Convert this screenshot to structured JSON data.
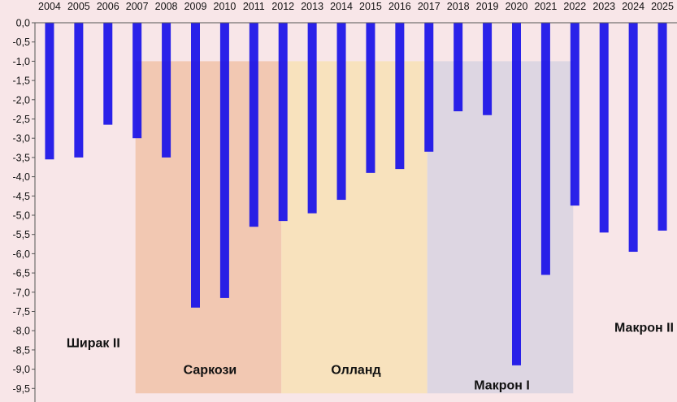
{
  "chart_data": {
    "type": "bar",
    "title": "",
    "xlabel": "",
    "ylabel": "",
    "categories": [
      "2004",
      "2005",
      "2006",
      "2007",
      "2008",
      "2009",
      "2010",
      "2011",
      "2012",
      "2013",
      "2014",
      "2015",
      "2016",
      "2017",
      "2018",
      "2019",
      "2020",
      "2021",
      "2022",
      "2023",
      "2024",
      "2025"
    ],
    "values": [
      -3.55,
      -3.5,
      -2.65,
      -3.0,
      -3.5,
      -7.4,
      -7.15,
      -5.3,
      -5.15,
      -4.95,
      -4.6,
      -3.9,
      -3.8,
      -3.35,
      -2.3,
      -2.4,
      -8.9,
      -6.55,
      -4.75,
      -5.45,
      -5.95,
      -5.4
    ],
    "bar_color": "#1a12e8",
    "ylim": [
      -9.5,
      0
    ],
    "yticks": [
      "0,0",
      "-0,5",
      "-1,0",
      "-1,5",
      "-2,0",
      "-2,5",
      "-3,0",
      "-3,5",
      "-4,0",
      "-4,5",
      "-5,0",
      "-5,5",
      "-6,0",
      "-6,5",
      "-7,0",
      "-7,5",
      "-8,0",
      "-8,5",
      "-9,0",
      "-9,5"
    ],
    "ytick_values": [
      0,
      -0.5,
      -1,
      -1.5,
      -2,
      -2.5,
      -3,
      -3.5,
      -4,
      -4.5,
      -5,
      -5.5,
      -6,
      -6.5,
      -7,
      -7.5,
      -8,
      -8.5,
      -9,
      -9.5
    ],
    "x_axis_position": "top",
    "grid": false,
    "legend": "none",
    "periods": [
      {
        "label": "Ширак II",
        "from": "2004",
        "to": "2007",
        "color": "#f8e6e8",
        "label_level": -8.3
      },
      {
        "label": "Саркози",
        "from": "2007",
        "to": "2012",
        "color": "#f2c8b2",
        "label_level": -9.0
      },
      {
        "label": "Олланд",
        "from": "2012",
        "to": "2017",
        "color": "#f8e2bd",
        "label_level": -9.0
      },
      {
        "label": "Макрон I",
        "from": "2017",
        "to": "2022",
        "color": "#ddd6e2",
        "label_level": -9.4
      },
      {
        "label": "Макрон II",
        "from": "2022",
        "to": "2025",
        "color": "#f8e6e8",
        "label_level": -7.9
      }
    ]
  }
}
